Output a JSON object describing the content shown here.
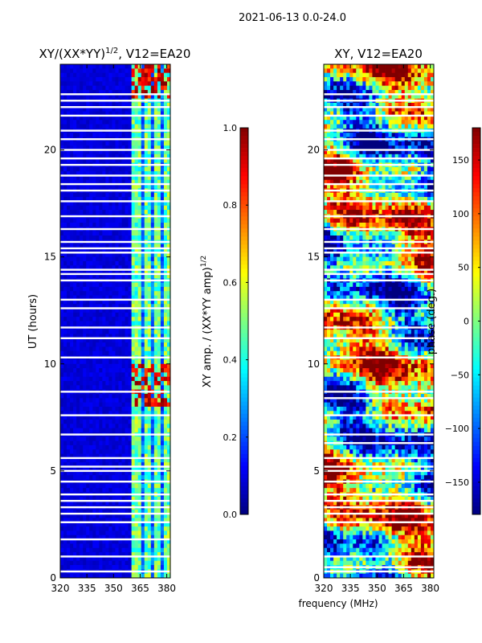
{
  "suptitle": "2021-06-13 0.0-24.0",
  "shared_xlabel": "frequency (MHz)",
  "colors": {
    "jet": [
      "#00007f",
      "#0000ff",
      "#007fff",
      "#00ffff",
      "#7fff7f",
      "#ffff00",
      "#ff7f00",
      "#ff0000",
      "#7f0000"
    ],
    "flag_gap": "#ffffff"
  },
  "chart_data": [
    {
      "type": "heatmap",
      "title": "XY/(XX*YY)^1/2, V12=EA20",
      "title_main": "XY/(XX*YY)",
      "title_sup": "1/2",
      "title_tail": ", V12=EA20",
      "xlabel": "",
      "ylabel": "UT (hours)",
      "xlim": [
        320,
        382
      ],
      "ylim": [
        0,
        24
      ],
      "xticks": [
        320,
        335,
        350,
        365,
        380
      ],
      "xtick_labels": [
        "320",
        "335",
        "350",
        "365",
        "380"
      ],
      "yticks": [
        0,
        5,
        10,
        15,
        20
      ],
      "ytick_labels": [
        "0",
        "5",
        "10",
        "15",
        "20"
      ],
      "colorbar": {
        "label": "XY amp. / (XX*YY amp)^1/2",
        "label_main": "XY amp. / (XX*YY amp)",
        "label_sup": "1/2",
        "range": [
          0.0,
          1.0
        ],
        "ticks": [
          0.0,
          0.2,
          0.4,
          0.6,
          0.8,
          1.0
        ],
        "tick_labels": [
          "0.0",
          "0.2",
          "0.4",
          "0.6",
          "0.8",
          "1.0"
        ]
      },
      "flagged_hours": [
        0.3,
        1.0,
        1.8,
        2.6,
        3.0,
        3.3,
        3.6,
        3.9,
        4.5,
        5.0,
        5.2,
        5.6,
        6.7,
        7.6,
        8.7,
        10.3,
        11.2,
        11.7,
        12.6,
        13.0,
        13.9,
        14.2,
        14.4,
        15.2,
        15.4,
        15.7,
        16.3,
        16.9,
        17.6,
        18.1,
        18.4,
        18.8,
        19.3,
        19.6,
        20.0,
        20.5,
        20.9,
        21.6,
        22.0,
        22.3,
        22.6
      ],
      "bright_channels_mhz": [
        363,
        369,
        375,
        380
      ],
      "bright_windows_hours": [
        [
          8.0,
          10.0
        ],
        [
          22.5,
          24.0
        ]
      ]
    },
    {
      "type": "heatmap",
      "title": "XY, V12=EA20",
      "xlabel": "frequency (MHz)",
      "ylabel": "",
      "xlim": [
        320,
        382
      ],
      "ylim": [
        0,
        24
      ],
      "xticks": [
        320,
        335,
        350,
        365,
        380
      ],
      "xtick_labels": [
        "320",
        "335",
        "350",
        "365",
        "380"
      ],
      "yticks": [
        0,
        5,
        10,
        15,
        20
      ],
      "ytick_labels": [
        "0",
        "5",
        "10",
        "15",
        "20"
      ],
      "colorbar": {
        "label": "phase (deg.)",
        "range": [
          -180,
          180
        ],
        "ticks": [
          -150,
          -100,
          -50,
          0,
          50,
          100,
          150
        ],
        "tick_labels": [
          "−150",
          "−100",
          "−50",
          "0",
          "50",
          "100",
          "150"
        ]
      },
      "flagged_hours": [
        0.3,
        0.5,
        1.0,
        2.6,
        3.0,
        3.3,
        3.6,
        3.9,
        4.5,
        5.0,
        5.2,
        5.6,
        6.3,
        6.7,
        7.6,
        8.4,
        8.7,
        10.3,
        11.2,
        11.7,
        12.6,
        13.0,
        13.9,
        14.2,
        14.4,
        15.2,
        15.4,
        15.7,
        16.3,
        16.9,
        17.6,
        18.1,
        18.4,
        18.8,
        19.3,
        19.6,
        20.0,
        20.5,
        20.9,
        21.6,
        22.0,
        22.3,
        22.6
      ]
    }
  ]
}
